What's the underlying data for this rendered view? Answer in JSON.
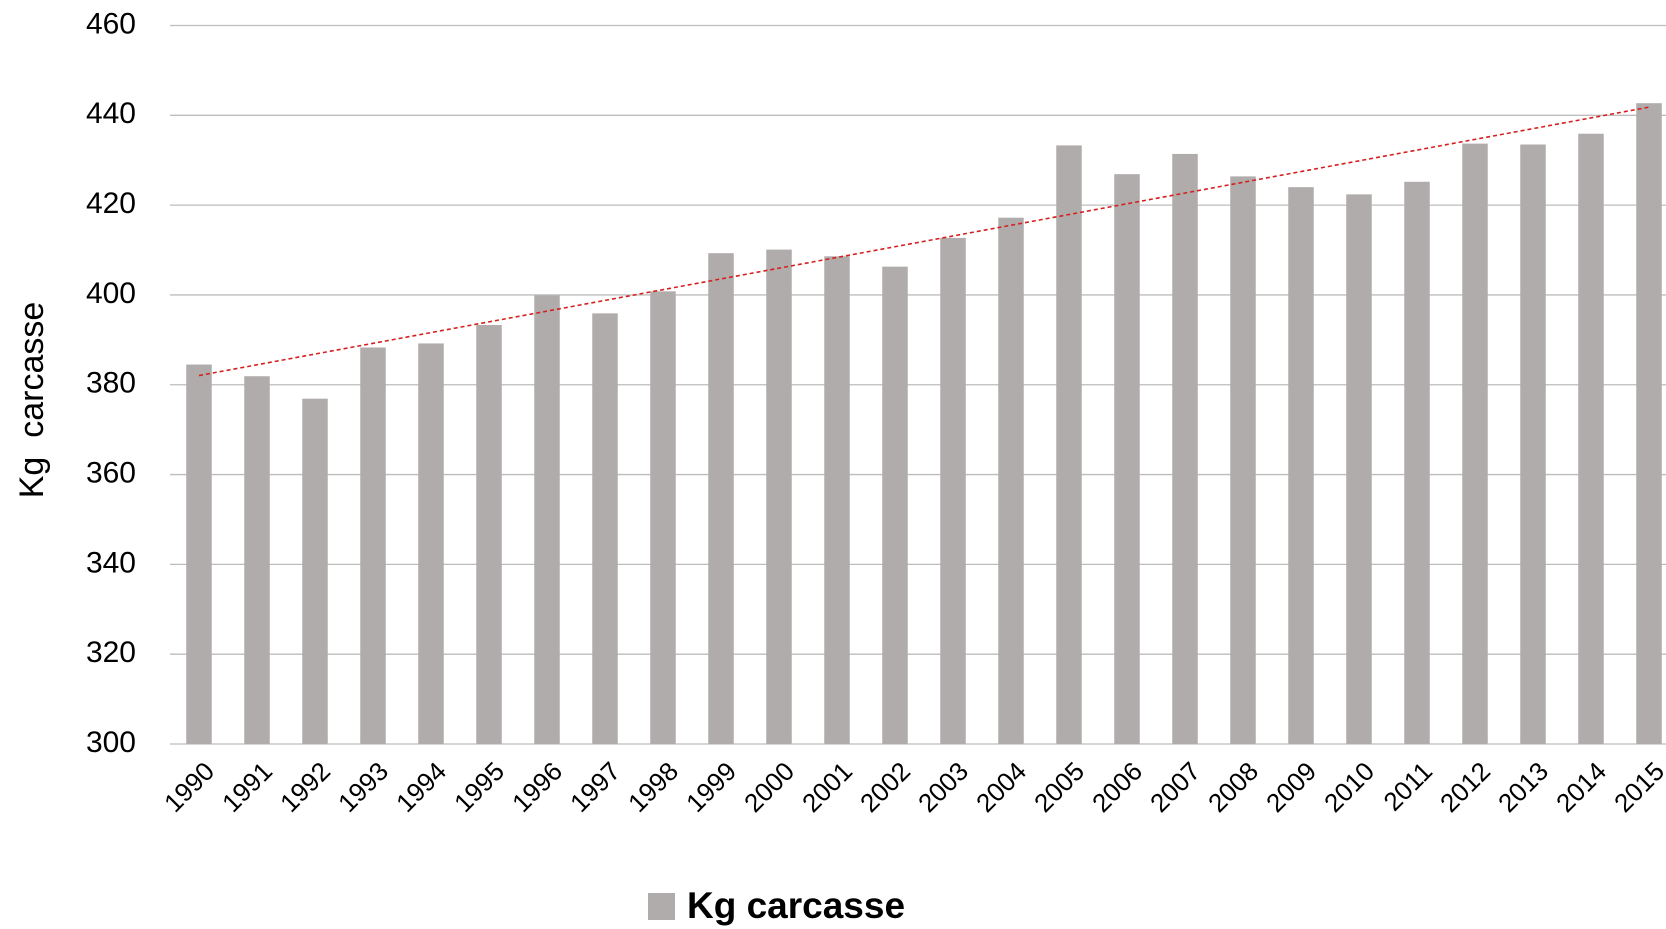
{
  "chart_data": {
    "type": "bar",
    "y_label": "Kg  carcasse",
    "categories": [
      "1990",
      "1991",
      "1992",
      "1993",
      "1994",
      "1995",
      "1996",
      "1997",
      "1998",
      "1999",
      "2000",
      "2001",
      "2002",
      "2003",
      "2004",
      "2005",
      "2006",
      "2007",
      "2008",
      "2009",
      "2010",
      "2011",
      "2012",
      "2013",
      "2014",
      "2015"
    ],
    "series": [
      {
        "name": "Kg carcasse",
        "color": "#b0acab",
        "values": [
          384.5,
          381.9,
          376.9,
          388.3,
          389.2,
          393.3,
          399.9,
          395.9,
          400.8,
          409.3,
          410.1,
          408.6,
          406.3,
          412.7,
          417.2,
          433.3,
          426.9,
          431.4,
          426.4,
          424,
          422.4,
          425.2,
          433.7,
          433.5,
          435.9,
          442.7
        ]
      }
    ],
    "ylim": [
      300,
      460
    ],
    "yticks": [
      300,
      320,
      340,
      360,
      380,
      400,
      420,
      440,
      460
    ],
    "grid": true,
    "legend": "bottom",
    "trendline": "linear",
    "trendline_color": "#d62020"
  }
}
